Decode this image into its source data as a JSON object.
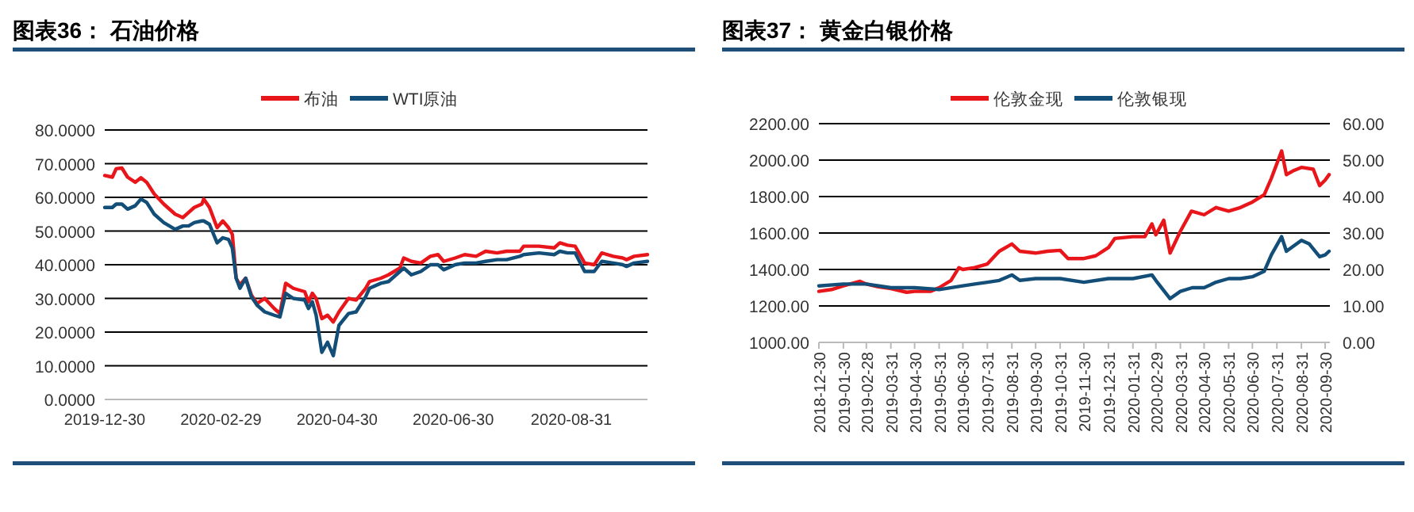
{
  "chart_data": [
    {
      "type": "line",
      "title": "图表36：  石油价格",
      "legend": "top",
      "grid": "y",
      "x": [
        "2019-12-30",
        "2020-01-03",
        "2020-01-05",
        "2020-01-08",
        "2020-01-11",
        "2020-01-15",
        "2020-01-18",
        "2020-01-21",
        "2020-01-25",
        "2020-01-30",
        "2020-02-05",
        "2020-02-09",
        "2020-02-12",
        "2020-02-15",
        "2020-02-19",
        "2020-02-20",
        "2020-02-23",
        "2020-02-27",
        "2020-03-01",
        "2020-03-04",
        "2020-03-06",
        "2020-03-08",
        "2020-03-10",
        "2020-03-13",
        "2020-03-16",
        "2020-03-19",
        "2020-03-23",
        "2020-03-28",
        "2020-03-31",
        "2020-04-03",
        "2020-04-07",
        "2020-04-13",
        "2020-04-15",
        "2020-04-17",
        "2020-04-19",
        "2020-04-22",
        "2020-04-25",
        "2020-04-28",
        "2020-05-01",
        "2020-05-06",
        "2020-05-10",
        "2020-05-15",
        "2020-05-17",
        "2020-05-23",
        "2020-05-27",
        "2020-06-02",
        "2020-06-04",
        "2020-06-08",
        "2020-06-13",
        "2020-06-18",
        "2020-06-22",
        "2020-06-25",
        "2020-07-01",
        "2020-07-06",
        "2020-07-12",
        "2020-07-17",
        "2020-07-23",
        "2020-07-28",
        "2020-08-04",
        "2020-08-06",
        "2020-08-14",
        "2020-08-22",
        "2020-08-25",
        "2020-08-29",
        "2020-09-02",
        "2020-09-07",
        "2020-09-12",
        "2020-09-16",
        "2020-09-22",
        "2020-09-27",
        "2020-09-29",
        "2020-10-03",
        "2020-10-10"
      ],
      "series": [
        {
          "name": "布油",
          "color": "#e8161a",
          "values": [
            66.5,
            66,
            68.5,
            68.7,
            66,
            64.5,
            65.8,
            64.5,
            61,
            58,
            55,
            54,
            55.5,
            57,
            58,
            59.5,
            57,
            51,
            53,
            51,
            49,
            36,
            34,
            36,
            31,
            28.5,
            30,
            27,
            25.5,
            34.5,
            33,
            32,
            29,
            31.5,
            30,
            24,
            25,
            23,
            26,
            30,
            29.5,
            33,
            35,
            36,
            37,
            39,
            42,
            41,
            40.5,
            42.5,
            43,
            41,
            42,
            43,
            42.5,
            44,
            43.5,
            44,
            44,
            45.5,
            45.5,
            45,
            46.5,
            45.8,
            45.5,
            40.5,
            40,
            43.5,
            42.5,
            42,
            41.5,
            42.5,
            43
          ]
        },
        {
          "name": "WTI原油",
          "color": "#124e78",
          "values": [
            57,
            57,
            58,
            58,
            56.5,
            57.5,
            59.5,
            58.5,
            55,
            52.5,
            50.5,
            51.5,
            51.5,
            52.5,
            53,
            53,
            52,
            46.5,
            48,
            47.5,
            45,
            36,
            33,
            36,
            30.5,
            28,
            26,
            25,
            24.5,
            31.5,
            30,
            29.5,
            27,
            29,
            25,
            14,
            17,
            13,
            22,
            25.5,
            26,
            30.5,
            33,
            34.5,
            35,
            38,
            39,
            37,
            38,
            40,
            40,
            38.5,
            40,
            40.5,
            40.5,
            41,
            41.5,
            41.5,
            42.5,
            43,
            43.5,
            43,
            44,
            43.5,
            43.5,
            38,
            38,
            41,
            40.5,
            40,
            39.5,
            40.5,
            41
          ]
        }
      ],
      "xlim": [
        "2019-12-30",
        "2020-10-10"
      ],
      "xticks": [
        "2019-12-30",
        "2020-02-29",
        "2020-04-30",
        "2020-06-30",
        "2020-08-31"
      ],
      "ylim": [
        0,
        80
      ],
      "yticks": [
        {
          "value": 0,
          "label": "0.0000"
        },
        {
          "value": 10,
          "label": "10.0000"
        },
        {
          "value": 20,
          "label": "20.0000"
        },
        {
          "value": 30,
          "label": "30.0000"
        },
        {
          "value": 40,
          "label": "40.0000"
        },
        {
          "value": 50,
          "label": "50.0000"
        },
        {
          "value": 60,
          "label": "60.0000"
        },
        {
          "value": 70,
          "label": "70.0000"
        },
        {
          "value": 80,
          "label": "80.0000"
        }
      ]
    },
    {
      "type": "line",
      "title": "图表37：  黄金白银价格",
      "legend": "top",
      "grid": "y",
      "series": [
        {
          "name": "伦敦金现",
          "color": "#e8161a",
          "x": [
            "2018-12-30",
            "2019-01-15",
            "2019-01-30",
            "2019-02-20",
            "2019-02-28",
            "2019-03-15",
            "2019-03-31",
            "2019-04-20",
            "2019-04-30",
            "2019-05-20",
            "2019-05-31",
            "2019-06-15",
            "2019-06-25",
            "2019-06-30",
            "2019-07-15",
            "2019-07-31",
            "2019-08-15",
            "2019-08-31",
            "2019-09-10",
            "2019-09-30",
            "2019-10-15",
            "2019-10-31",
            "2019-11-10",
            "2019-11-30",
            "2019-12-15",
            "2019-12-31",
            "2020-01-08",
            "2020-01-31",
            "2020-02-15",
            "2020-02-24",
            "2020-02-29",
            "2020-03-10",
            "2020-03-18",
            "2020-03-31",
            "2020-04-14",
            "2020-04-30",
            "2020-05-15",
            "2020-05-31",
            "2020-06-15",
            "2020-06-30",
            "2020-07-15",
            "2020-07-24",
            "2020-08-06",
            "2020-08-12",
            "2020-08-20",
            "2020-08-31",
            "2020-09-15",
            "2020-09-23",
            "2020-09-30",
            "2020-10-05"
          ],
          "values": [
            1280,
            1290,
            1310,
            1335,
            1320,
            1305,
            1295,
            1275,
            1280,
            1280,
            1300,
            1340,
            1410,
            1400,
            1410,
            1430,
            1500,
            1540,
            1500,
            1490,
            1500,
            1505,
            1460,
            1460,
            1475,
            1520,
            1570,
            1580,
            1580,
            1650,
            1590,
            1670,
            1490,
            1610,
            1720,
            1700,
            1740,
            1720,
            1740,
            1770,
            1810,
            1900,
            2050,
            1920,
            1940,
            1960,
            1950,
            1860,
            1890,
            1920
          ]
        },
        {
          "name": "伦敦银现",
          "color": "#124e78",
          "axis": "y2",
          "x": [
            "2018-12-30",
            "2019-01-30",
            "2019-02-28",
            "2019-03-31",
            "2019-04-30",
            "2019-05-31",
            "2019-06-30",
            "2019-07-15",
            "2019-07-31",
            "2019-08-15",
            "2019-08-31",
            "2019-09-10",
            "2019-09-30",
            "2019-10-15",
            "2019-10-31",
            "2019-11-30",
            "2019-12-31",
            "2020-01-31",
            "2020-02-24",
            "2020-02-29",
            "2020-03-18",
            "2020-03-31",
            "2020-04-15",
            "2020-04-30",
            "2020-05-15",
            "2020-05-31",
            "2020-06-15",
            "2020-06-30",
            "2020-07-15",
            "2020-07-24",
            "2020-08-06",
            "2020-08-12",
            "2020-08-31",
            "2020-09-10",
            "2020-09-23",
            "2020-09-30",
            "2020-10-05"
          ],
          "values": [
            15.5,
            16,
            16,
            15,
            15,
            14.5,
            15.5,
            16,
            16.5,
            17,
            18.5,
            17,
            17.5,
            17.5,
            17.5,
            16.5,
            17.5,
            17.5,
            18.5,
            17,
            12,
            14,
            15,
            15,
            16.5,
            17.5,
            17.5,
            18,
            19.5,
            24,
            29,
            25,
            28,
            27,
            23.5,
            24,
            25
          ]
        }
      ],
      "xlim": [
        "2018-12-30",
        "2020-10-06"
      ],
      "xticks": [
        "2018-12-30",
        "2019-01-30",
        "2019-02-28",
        "2019-03-31",
        "2019-04-30",
        "2019-05-31",
        "2019-06-30",
        "2019-07-31",
        "2019-08-31",
        "2019-09-30",
        "2019-10-31",
        "2019-11-30",
        "2019-12-31",
        "2020-01-31",
        "2020-02-29",
        "2020-03-31",
        "2020-04-30",
        "2020-05-31",
        "2020-06-30",
        "2020-07-31",
        "2020-08-31",
        "2020-09-30"
      ],
      "ylim": [
        1000,
        2200
      ],
      "yticks": [
        {
          "value": 1000,
          "label": "1000.00"
        },
        {
          "value": 1200,
          "label": "1200.00"
        },
        {
          "value": 1400,
          "label": "1400.00"
        },
        {
          "value": 1600,
          "label": "1600.00"
        },
        {
          "value": 1800,
          "label": "1800.00"
        },
        {
          "value": 2000,
          "label": "2000.00"
        },
        {
          "value": 2200,
          "label": "2200.00"
        }
      ],
      "y2lim": [
        0,
        60
      ],
      "y2ticks": [
        {
          "value": 0,
          "label": "0.00"
        },
        {
          "value": 10,
          "label": "10.00"
        },
        {
          "value": 20,
          "label": "20.00"
        },
        {
          "value": 30,
          "label": "30.00"
        },
        {
          "value": 40,
          "label": "40.00"
        },
        {
          "value": 50,
          "label": "50.00"
        },
        {
          "value": 60,
          "label": "60.00"
        }
      ]
    }
  ]
}
